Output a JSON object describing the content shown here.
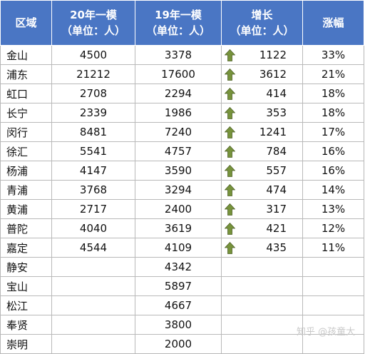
{
  "header": {
    "region": "区域",
    "col20_line1": "20年一模",
    "col20_line2": "（单位：人）",
    "col19_line1": "19年一模",
    "col19_line2": "（单位：人）",
    "growth_line1": "增长",
    "growth_line2": "（单位：人）",
    "rate": "涨幅"
  },
  "rows": [
    {
      "region": "金山",
      "y20": "4500",
      "y19": "3378",
      "growth": "1122",
      "rate": "33%"
    },
    {
      "region": "浦东",
      "y20": "21212",
      "y19": "17600",
      "growth": "3612",
      "rate": "21%"
    },
    {
      "region": "虹口",
      "y20": "2708",
      "y19": "2294",
      "growth": "414",
      "rate": "18%"
    },
    {
      "region": "长宁",
      "y20": "2339",
      "y19": "1986",
      "growth": "353",
      "rate": "18%"
    },
    {
      "region": "闵行",
      "y20": "8481",
      "y19": "7240",
      "growth": "1241",
      "rate": "17%"
    },
    {
      "region": "徐汇",
      "y20": "5541",
      "y19": "4757",
      "growth": "784",
      "rate": "16%"
    },
    {
      "region": "杨浦",
      "y20": "4147",
      "y19": "3590",
      "growth": "557",
      "rate": "16%"
    },
    {
      "region": "青浦",
      "y20": "3768",
      "y19": "3294",
      "growth": "474",
      "rate": "14%"
    },
    {
      "region": "黄浦",
      "y20": "2717",
      "y19": "2400",
      "growth": "317",
      "rate": "13%"
    },
    {
      "region": "普陀",
      "y20": "4040",
      "y19": "3619",
      "growth": "421",
      "rate": "12%"
    },
    {
      "region": "嘉定",
      "y20": "4544",
      "y19": "4109",
      "growth": "435",
      "rate": "11%"
    },
    {
      "region": "静安",
      "y20": "",
      "y19": "4342",
      "growth": "",
      "rate": ""
    },
    {
      "region": "宝山",
      "y20": "",
      "y19": "5897",
      "growth": "",
      "rate": ""
    },
    {
      "region": "松江",
      "y20": "",
      "y19": "4667",
      "growth": "",
      "rate": ""
    },
    {
      "region": "奉贤",
      "y20": "",
      "y19": "3800",
      "growth": "",
      "rate": ""
    },
    {
      "region": "崇明",
      "y20": "",
      "y19": "2000",
      "growth": "",
      "rate": ""
    }
  ],
  "colors": {
    "header_bg": "#4a76c4",
    "arrow_fill": "#77933c",
    "border": "#b9b9b9"
  },
  "icons": {
    "up_arrow": "up-arrow-icon"
  },
  "watermark": "知乎 @孩童大"
}
